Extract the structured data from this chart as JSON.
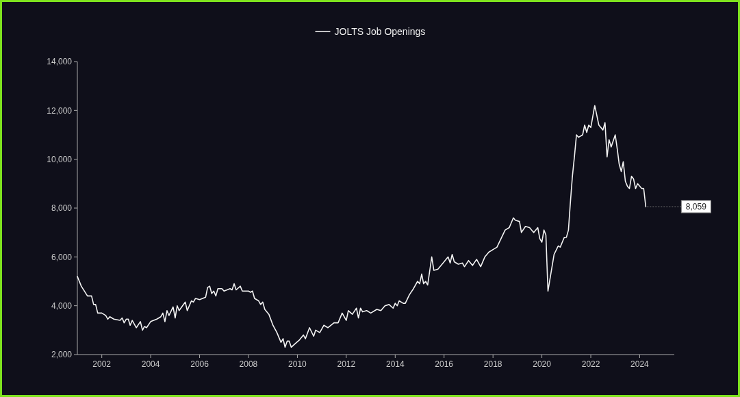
{
  "chart_data": {
    "type": "line",
    "legend": "top",
    "grid": false,
    "line_style": "solid",
    "marker": "none",
    "xlim": [
      "2001-01",
      "2025-06"
    ],
    "xticks": [
      "2002",
      "2004",
      "2006",
      "2008",
      "2010",
      "2012",
      "2014",
      "2016",
      "2018",
      "2020",
      "2022",
      "2024"
    ],
    "ylim": [
      2000,
      14000
    ],
    "yticks": [
      {
        "value": 2000,
        "label": "2,000"
      },
      {
        "value": 4000,
        "label": "4,000"
      },
      {
        "value": 6000,
        "label": "6,000"
      },
      {
        "value": 8000,
        "label": "8,000"
      },
      {
        "value": 10000,
        "label": "10,000"
      },
      {
        "value": 12000,
        "label": "12,000"
      },
      {
        "value": 14000,
        "label": "14,000"
      }
    ],
    "annotations": [
      {
        "text": "8,059",
        "x": "2024-04",
        "y": 8059
      }
    ],
    "x": [
      "2001-01",
      "2001-03",
      "2001-06",
      "2001-08",
      "2001-09",
      "2001-10",
      "2001-11",
      "2002-01",
      "2002-03",
      "2002-04",
      "2002-05",
      "2002-07",
      "2002-10",
      "2002-11",
      "2002-12",
      "2003-01",
      "2003-02",
      "2003-03",
      "2003-04",
      "2003-06",
      "2003-08",
      "2003-09",
      "2003-10",
      "2003-11",
      "2004-01",
      "2004-04",
      "2004-06",
      "2004-07",
      "2004-08",
      "2004-09",
      "2004-10",
      "2004-12",
      "2005-01",
      "2005-02",
      "2005-03",
      "2005-06",
      "2005-07",
      "2005-09",
      "2005-10",
      "2005-11",
      "2006-01",
      "2006-04",
      "2006-05",
      "2006-06",
      "2006-07",
      "2006-08",
      "2006-09",
      "2006-10",
      "2006-12",
      "2007-01",
      "2007-04",
      "2007-05",
      "2007-06",
      "2007-07",
      "2007-09",
      "2007-10",
      "2007-11",
      "2008-01",
      "2008-02",
      "2008-03",
      "2008-04",
      "2008-06",
      "2008-07",
      "2008-08",
      "2008-09",
      "2008-11",
      "2009-01",
      "2009-03",
      "2009-05",
      "2009-06",
      "2009-07",
      "2009-08",
      "2009-09",
      "2009-10",
      "2009-12",
      "2010-02",
      "2010-04",
      "2010-05",
      "2010-07",
      "2010-09",
      "2010-10",
      "2010-12",
      "2011-02",
      "2011-04",
      "2011-07",
      "2011-09",
      "2011-11",
      "2012-01",
      "2012-02",
      "2012-04",
      "2012-06",
      "2012-07",
      "2012-08",
      "2012-09",
      "2012-11",
      "2013-01",
      "2013-04",
      "2013-06",
      "2013-08",
      "2013-10",
      "2013-12",
      "2014-01",
      "2014-02",
      "2014-03",
      "2014-05",
      "2014-06",
      "2014-08",
      "2014-10",
      "2014-12",
      "2015-01",
      "2015-02",
      "2015-03",
      "2015-04",
      "2015-05",
      "2015-07",
      "2015-08",
      "2015-10",
      "2016-01",
      "2016-03",
      "2016-04",
      "2016-05",
      "2016-06",
      "2016-08",
      "2016-10",
      "2016-11",
      "2017-01",
      "2017-03",
      "2017-05",
      "2017-07",
      "2017-09",
      "2017-11",
      "2018-01",
      "2018-03",
      "2018-05",
      "2018-07",
      "2018-09",
      "2018-11",
      "2018-12",
      "2019-02",
      "2019-03",
      "2019-05",
      "2019-07",
      "2019-09",
      "2019-11",
      "2019-12",
      "2020-01",
      "2020-02",
      "2020-03",
      "2020-04",
      "2020-07",
      "2020-09",
      "2020-10",
      "2020-12",
      "2021-01",
      "2021-02",
      "2021-03",
      "2021-04",
      "2021-05",
      "2021-06",
      "2021-07",
      "2021-09",
      "2021-10",
      "2021-11",
      "2021-12",
      "2022-01",
      "2022-03",
      "2022-05",
      "2022-07",
      "2022-08",
      "2022-09",
      "2022-10",
      "2022-11",
      "2023-01",
      "2023-02",
      "2023-03",
      "2023-04",
      "2023-05",
      "2023-06",
      "2023-07",
      "2023-08",
      "2023-09",
      "2023-10",
      "2023-11",
      "2023-12",
      "2024-02",
      "2024-03",
      "2024-04"
    ],
    "series": [
      {
        "name": "JOLTS Job Openings",
        "color": "#f2f2f2",
        "values": [
          5200,
          4800,
          4400,
          4400,
          4050,
          4050,
          3700,
          3700,
          3600,
          3450,
          3550,
          3450,
          3400,
          3500,
          3300,
          3450,
          3450,
          3200,
          3400,
          3100,
          3350,
          3000,
          3150,
          3100,
          3350,
          3450,
          3550,
          3700,
          3350,
          3800,
          3600,
          3950,
          3500,
          4000,
          3800,
          4150,
          3800,
          4200,
          4150,
          4300,
          4250,
          4350,
          4750,
          4800,
          4500,
          4600,
          4400,
          4700,
          4700,
          4600,
          4700,
          4650,
          4900,
          4650,
          4800,
          4600,
          4600,
          4600,
          4550,
          4600,
          4300,
          4200,
          4050,
          4150,
          3850,
          3650,
          3200,
          2900,
          2500,
          2650,
          2300,
          2550,
          2550,
          2300,
          2450,
          2600,
          2800,
          2650,
          3100,
          2750,
          3000,
          2900,
          3200,
          3100,
          3300,
          3300,
          3700,
          3400,
          3800,
          3650,
          3900,
          3500,
          3900,
          3750,
          3800,
          3700,
          3850,
          3800,
          4000,
          4050,
          3900,
          4100,
          4000,
          4200,
          4100,
          4100,
          4450,
          4700,
          5000,
          4900,
          5300,
          4900,
          5000,
          4850,
          6000,
          5450,
          5500,
          5800,
          6000,
          5750,
          6100,
          5800,
          5700,
          5750,
          5600,
          5850,
          5650,
          5900,
          5600,
          6000,
          6200,
          6300,
          6400,
          6750,
          7100,
          7200,
          7600,
          7500,
          7450,
          7000,
          7250,
          7200,
          7000,
          7200,
          6750,
          6600,
          7100,
          6900,
          4600,
          6100,
          6450,
          6400,
          6800,
          6800,
          7100,
          8200,
          9300,
          10100,
          11000,
          10900,
          11000,
          11400,
          11100,
          11400,
          11300,
          12200,
          11400,
          11200,
          11500,
          10100,
          10800,
          10500,
          11000,
          10400,
          9800,
          9500,
          9900,
          9100,
          8900,
          8800,
          9300,
          9200,
          8800,
          9000,
          8800,
          8800,
          8059
        ]
      }
    ]
  }
}
